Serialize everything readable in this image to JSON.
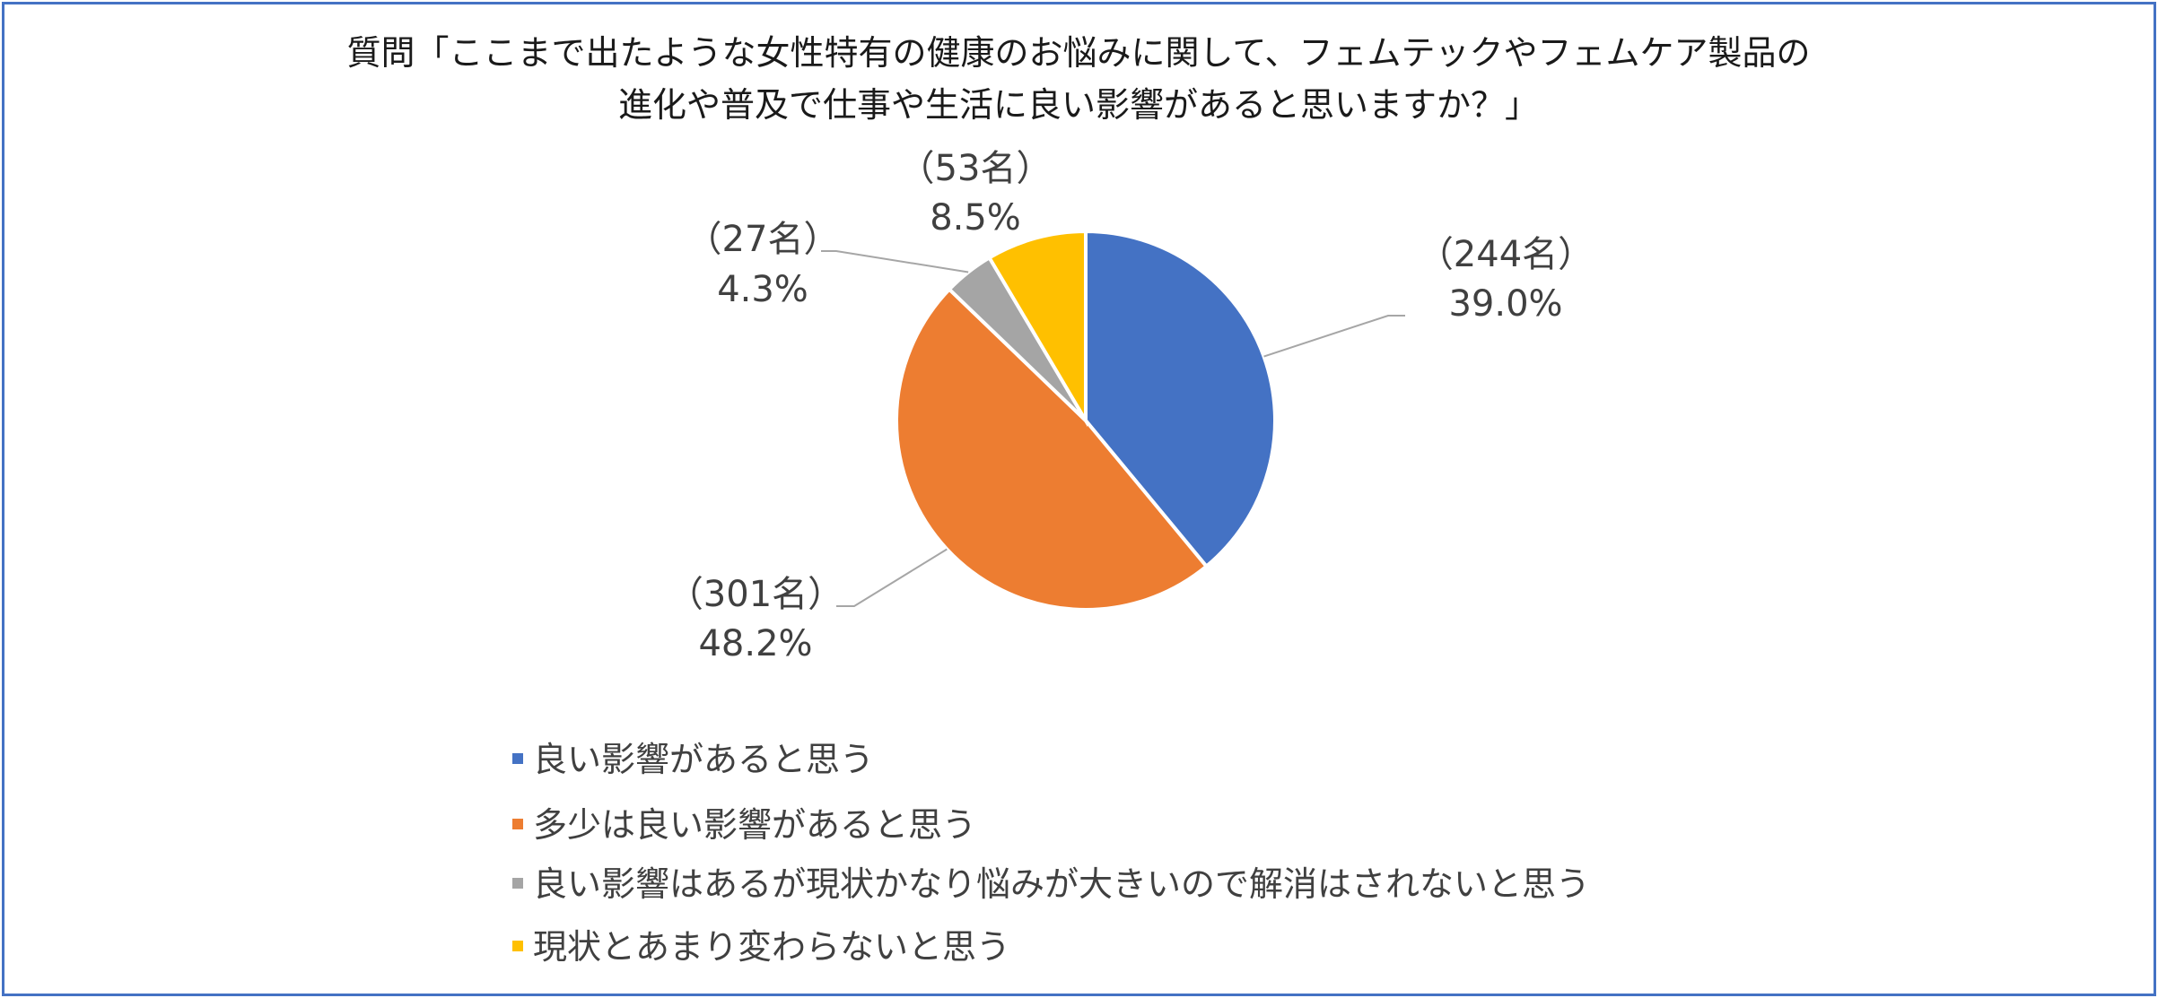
{
  "chart_data": {
    "type": "pie",
    "title_lines": [
      "質問「ここまで出たような女性特有の健康のお悩みに関して、フェムテックやフェムケア製品の",
      "進化や普及で仕事や生活に良い影響があると思いますか？」"
    ],
    "series": [
      {
        "name": "良い影響があると思う",
        "value": 39.0,
        "count_label": "（244名）",
        "pct_label": "39.0%",
        "color": "#4472C4"
      },
      {
        "name": "多少は良い影響があると思う",
        "value": 48.2,
        "count_label": "（301名）",
        "pct_label": "48.2%",
        "color": "#ED7D31"
      },
      {
        "name": "良い影響はあるが現状かなり悩みが大きいので解消はされないと思う",
        "value": 4.3,
        "count_label": "（27名）",
        "pct_label": "4.3%",
        "color": "#A5A5A5"
      },
      {
        "name": "現状とあまり変わらないと思う",
        "value": 8.5,
        "count_label": "（53名）",
        "pct_label": "8.5%",
        "color": "#FFC000"
      }
    ],
    "start_angle_deg": 0,
    "direction": "clockwise",
    "legend_position": "bottom"
  }
}
